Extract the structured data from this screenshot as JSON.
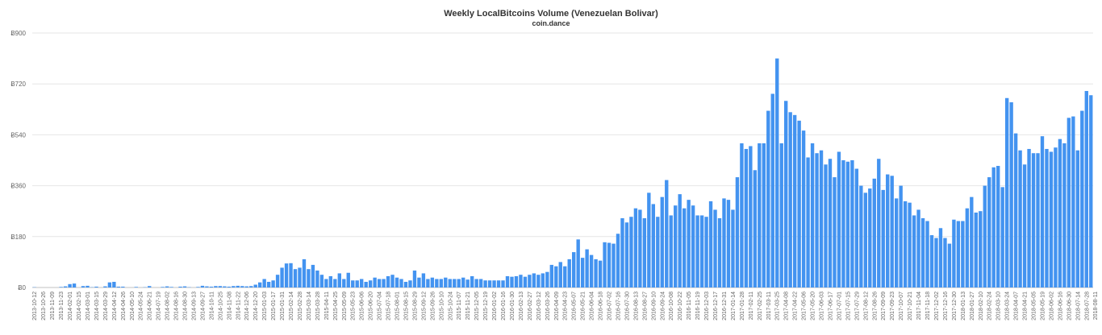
{
  "chart_data": {
    "type": "bar",
    "title": "Weekly LocalBitcoins Volume (Venezuelan Bolivar)",
    "subtitle": "coin.dance",
    "xlabel": "",
    "ylabel": "",
    "y_prefix": "Ƀ",
    "ylim": [
      0,
      900
    ],
    "yticks": [
      0,
      180,
      360,
      540,
      720,
      900
    ],
    "grid": true,
    "legend": "none",
    "bar_color": "#4393f0",
    "tick_labels": [
      "2013-10-12",
      "2013-10-26",
      "2013-11-09",
      "2013-11-23",
      "2014-02-01",
      "2014-02-15",
      "2014-03-01",
      "2014-03-15",
      "2014-03-29",
      "2014-04-12",
      "2014-04-26",
      "2014-05-10",
      "2014-05-24",
      "2014-06-21",
      "2014-07-19",
      "2014-08-02",
      "2014-08-16",
      "2014-08-30",
      "2014-09-13",
      "2014-09-27",
      "2014-10-11",
      "2014-10-25",
      "2014-11-08",
      "2014-11-22",
      "2014-12-06",
      "2014-12-20",
      "2015-01-03",
      "2015-01-17",
      "2015-01-31",
      "2015-02-14",
      "2015-02-28",
      "2015-03-14",
      "2015-03-28",
      "2015-04-11",
      "2015-04-25",
      "2015-05-09",
      "2015-05-23",
      "2015-06-06",
      "2015-06-20",
      "2015-07-04",
      "2015-07-18",
      "2015-08-01",
      "2015-08-15",
      "2015-08-29",
      "2015-09-12",
      "2015-09-26",
      "2015-10-10",
      "2015-10-24",
      "2015-11-07",
      "2015-11-21",
      "2015-12-05",
      "2015-12-19",
      "2016-01-02",
      "2016-01-16",
      "2016-01-30",
      "2016-02-13",
      "2016-02-27",
      "2016-03-12",
      "2016-03-26",
      "2016-04-09",
      "2016-04-23",
      "2016-05-07",
      "2016-05-21",
      "2016-06-04",
      "2016-06-18",
      "2016-07-02",
      "2016-07-16",
      "2016-07-30",
      "2016-08-13",
      "2016-08-27",
      "2016-09-10",
      "2016-09-24",
      "2016-10-08",
      "2016-10-22",
      "2016-11-05",
      "2016-11-19",
      "2016-12-03",
      "2016-12-17",
      "2016-12-31",
      "2017-01-14",
      "2017-01-28",
      "2017-02-11",
      "2017-02-25",
      "2017-03-11",
      "2017-03-25",
      "2017-04-08",
      "2017-04-22",
      "2017-05-06",
      "2017-05-20",
      "2017-06-03",
      "2017-06-17",
      "2017-07-01",
      "2017-07-15",
      "2017-07-29",
      "2017-08-12",
      "2017-08-26",
      "2017-09-09",
      "2017-09-23",
      "2017-10-07",
      "2017-10-21",
      "2017-11-04",
      "2017-11-18",
      "2017-12-02",
      "2017-12-16",
      "2017-12-30",
      "2018-01-13",
      "2018-01-27",
      "2018-02-10",
      "2018-02-24",
      "2018-03-10",
      "2018-03-24",
      "2018-04-07",
      "2018-04-21",
      "2018-05-05",
      "2018-05-19",
      "2018-06-02",
      "2018-06-16",
      "2018-06-30",
      "2018-07-14",
      "2018-07-28",
      "2018-08-11"
    ],
    "values": [
      1,
      0,
      0,
      0,
      0,
      0,
      2,
      4,
      12,
      14,
      0,
      5,
      6,
      1,
      3,
      0,
      4,
      18,
      20,
      3,
      3,
      0,
      0,
      2,
      0,
      1,
      5,
      0,
      0,
      2,
      4,
      2,
      0,
      3,
      4,
      1,
      0,
      2,
      6,
      4,
      3,
      5,
      5,
      4,
      3,
      5,
      6,
      5,
      4,
      5,
      10,
      18,
      30,
      20,
      25,
      45,
      70,
      85,
      86,
      65,
      70,
      100,
      65,
      80,
      60,
      45,
      30,
      40,
      30,
      50,
      30,
      52,
      25,
      25,
      30,
      20,
      25,
      35,
      30,
      30,
      40,
      45,
      35,
      30,
      20,
      25,
      60,
      35,
      50,
      30,
      35,
      30,
      30,
      35,
      30,
      30,
      30,
      35,
      28,
      40,
      30,
      30,
      25,
      25,
      25,
      25,
      25,
      40,
      38,
      40,
      45,
      38,
      45,
      50,
      45,
      50,
      55,
      80,
      75,
      90,
      75,
      100,
      125,
      170,
      105,
      135,
      115,
      100,
      95,
      160,
      158,
      155,
      190,
      245,
      230,
      250,
      280,
      275,
      245,
      335,
      295,
      250,
      320,
      380,
      255,
      290,
      330,
      280,
      310,
      290,
      255,
      255,
      250,
      305,
      275,
      245,
      315,
      310,
      275,
      390,
      510,
      490,
      500,
      415,
      510,
      510,
      625,
      685,
      810,
      510,
      660,
      620,
      610,
      590,
      555,
      460,
      510,
      475,
      485,
      435,
      455,
      390,
      480,
      450,
      445,
      450,
      420,
      360,
      335,
      350,
      385,
      455,
      345,
      400,
      395,
      315,
      360,
      305,
      300,
      255,
      275,
      245,
      235,
      185,
      175,
      210,
      175,
      155,
      240,
      235,
      235,
      280,
      320,
      265,
      270,
      360,
      390,
      425,
      430,
      355,
      670,
      655,
      545,
      485,
      435,
      490,
      475,
      475,
      535,
      490,
      480,
      495,
      525,
      510,
      600,
      605,
      485,
      625,
      695,
      680
    ]
  }
}
